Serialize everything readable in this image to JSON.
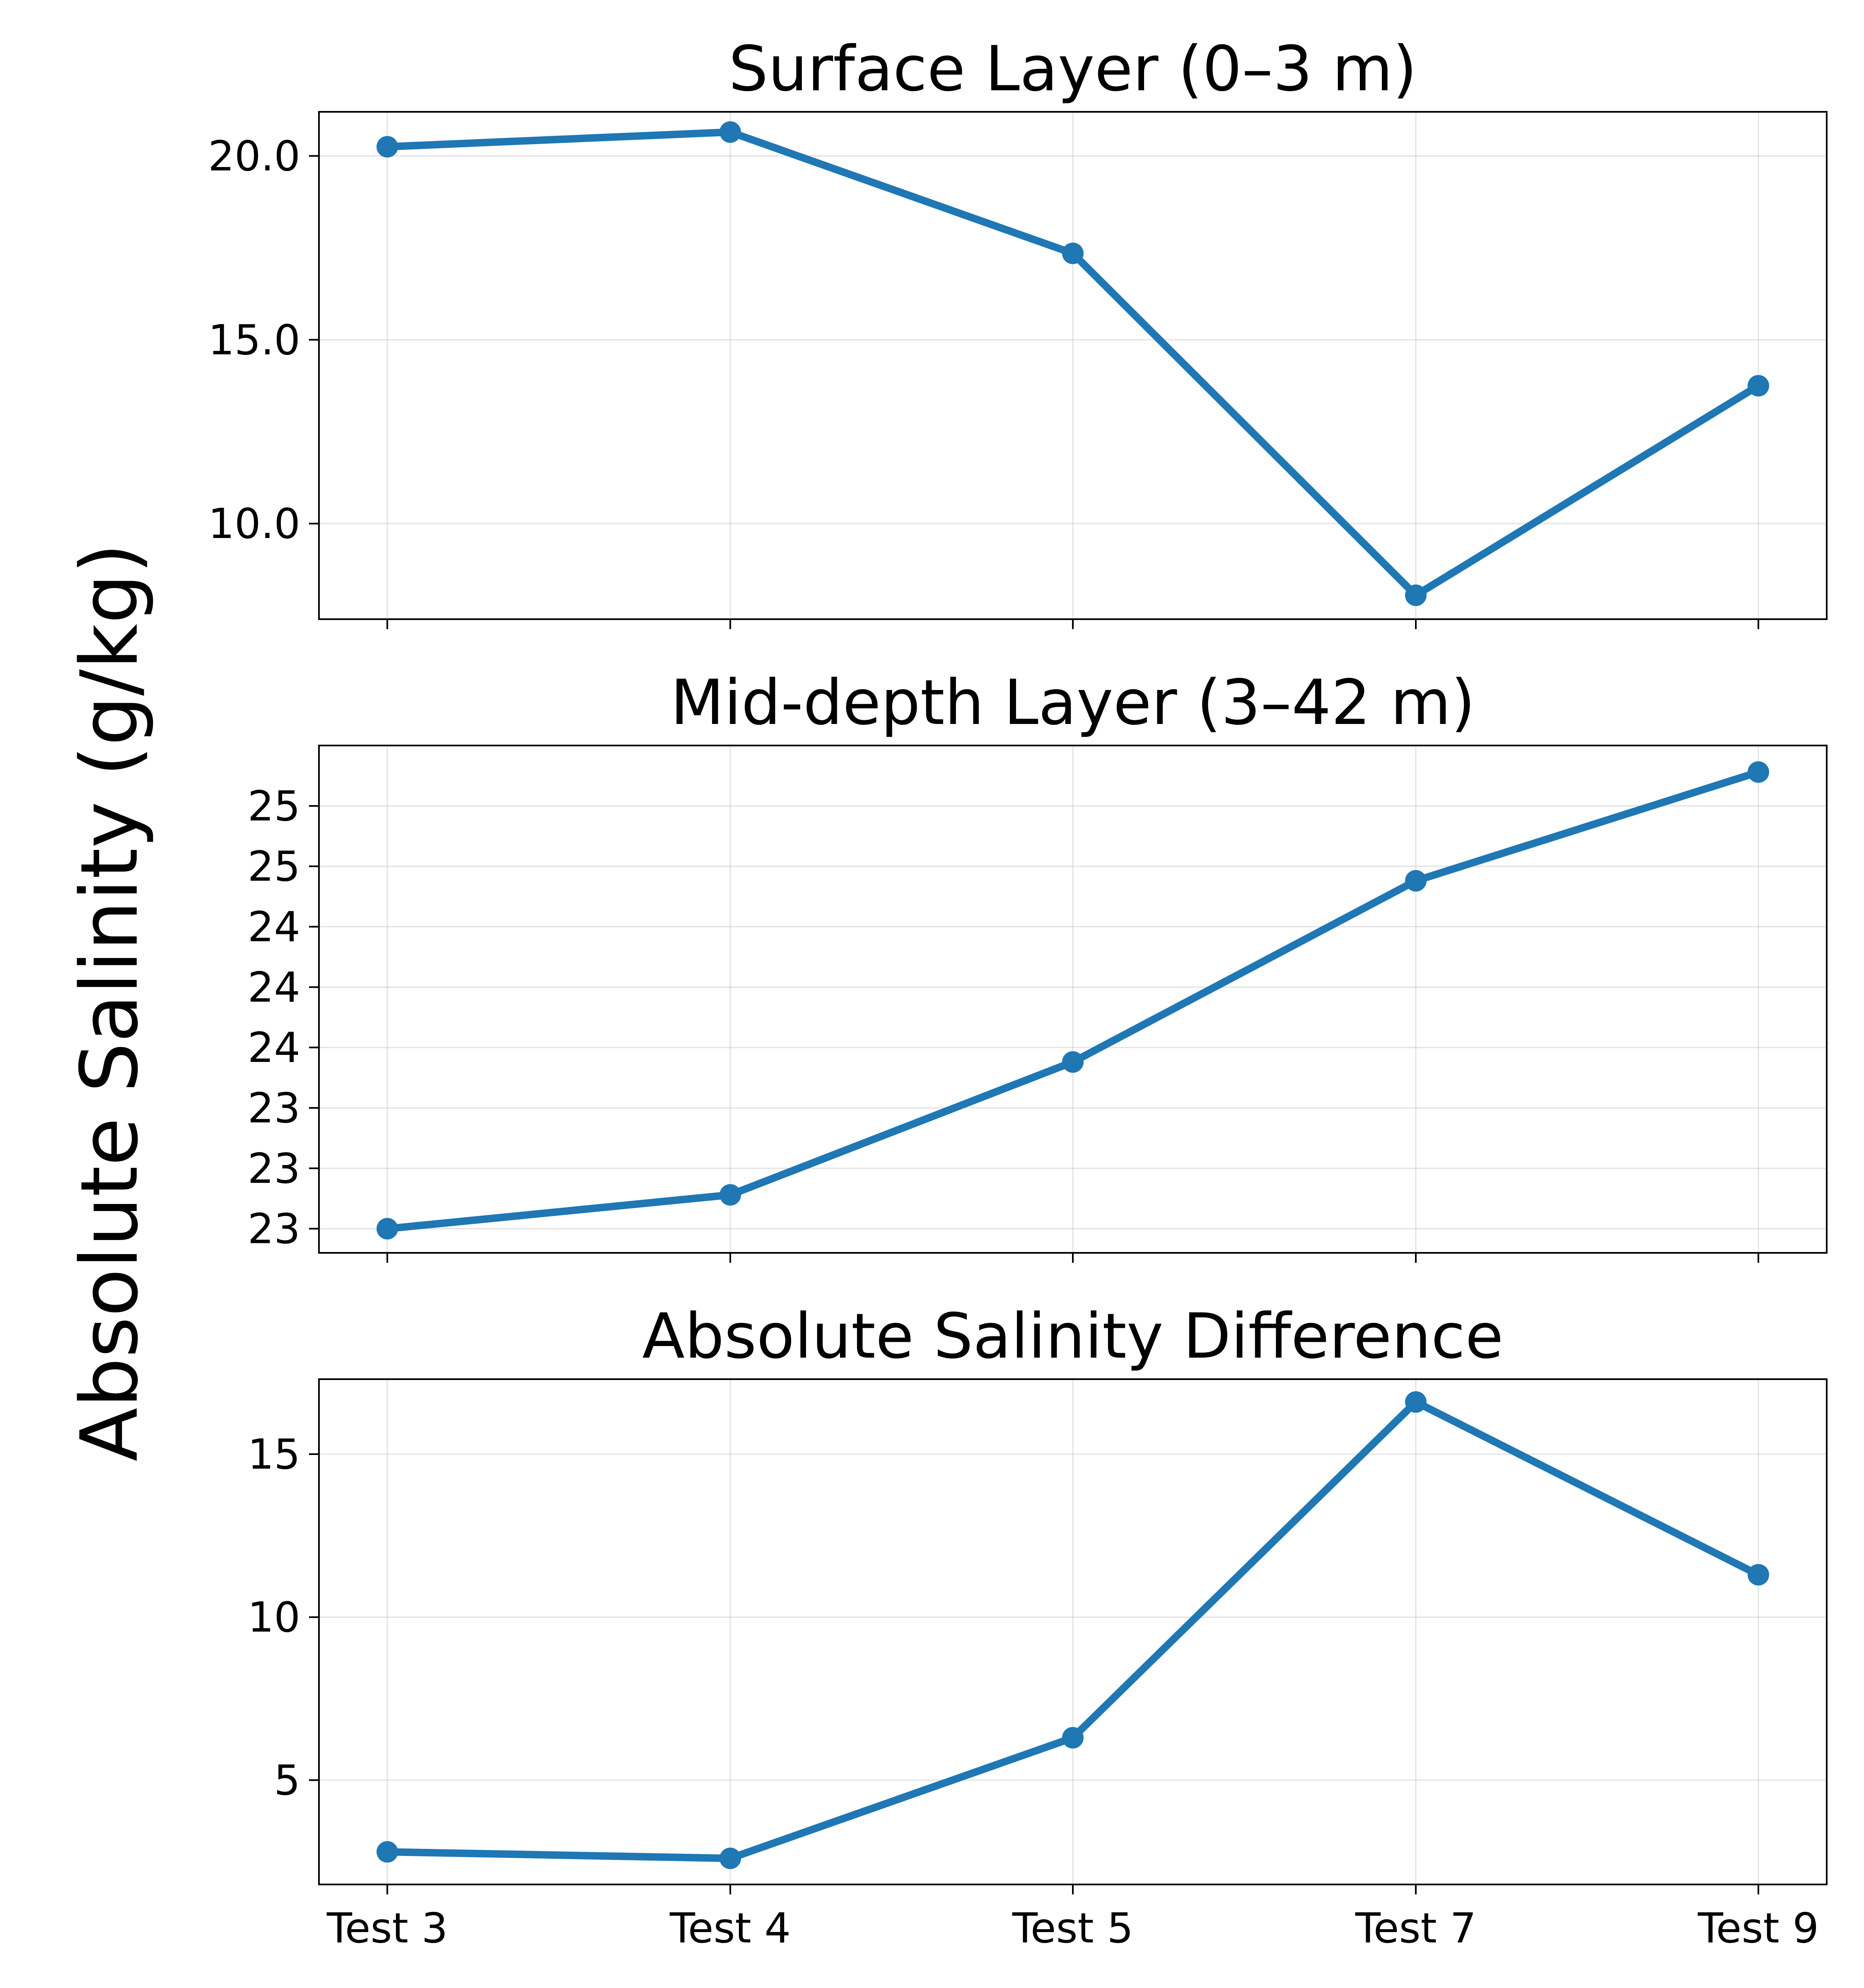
{
  "colors": {
    "series": "#1f77b4"
  },
  "ylabel": "Absolute Salinity (g/kg)",
  "chart_data": [
    {
      "type": "line",
      "title": "Surface Layer (0–3 m)",
      "categories": [
        "Test 3",
        "Test 4",
        "Test 5",
        "Test 7",
        "Test 9"
      ],
      "values": [
        20.25,
        20.65,
        17.35,
        8.05,
        13.75
      ],
      "ylim": [
        7.4,
        21.2
      ],
      "yticks": [
        10.0,
        15.0,
        20.0
      ],
      "ytick_labels": [
        "10.0",
        "15.0",
        "20.0"
      ],
      "grid": true,
      "xtick_labels_shown": false
    },
    {
      "type": "line",
      "title": "Mid-depth Layer (3–42 m)",
      "categories": [
        "Test 3",
        "Test 4",
        "Test 5",
        "Test 7",
        "Test 9"
      ],
      "values": [
        23.0,
        23.14,
        23.69,
        24.44,
        24.89
      ],
      "ylim": [
        22.9,
        25.0
      ],
      "yticks": [
        23.0,
        23.25,
        23.5,
        23.75,
        24.0,
        24.25,
        24.5,
        24.75
      ],
      "ytick_labels": [
        "23",
        "23",
        "23",
        "24",
        "24",
        "24",
        "25",
        "25"
      ],
      "grid": true,
      "xtick_labels_shown": false
    },
    {
      "type": "line",
      "title": "Absolute Salinity Difference",
      "categories": [
        "Test 3",
        "Test 4",
        "Test 5",
        "Test 7",
        "Test 9"
      ],
      "values": [
        2.8,
        2.6,
        6.3,
        16.6,
        11.3
      ],
      "ylim": [
        1.8,
        17.3
      ],
      "yticks": [
        5,
        10,
        15
      ],
      "ytick_labels": [
        "5",
        "10",
        "15"
      ],
      "grid": true,
      "xtick_labels_shown": true
    }
  ]
}
